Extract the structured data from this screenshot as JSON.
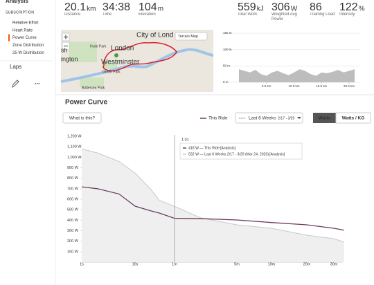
{
  "sidebar": {
    "header": "Analysis",
    "section": "SUBSCRIPTION",
    "items": [
      "Relative Effort",
      "Heart Rate",
      "Power Curve",
      "Zone Distribution",
      "25 W Distribution"
    ],
    "selected": 2,
    "laps": "Laps",
    "more": "..."
  },
  "stats": [
    {
      "value": "20.1",
      "unit": "km",
      "label": "Distance"
    },
    {
      "value": "34:38",
      "unit": "",
      "label": "Time"
    },
    {
      "value": "104",
      "unit": "m",
      "label": "Elevation"
    },
    {
      "value": "559",
      "unit": "kJ",
      "label": "Total Work"
    },
    {
      "value": "306",
      "unit": "W",
      "label": "Weighted Avg Power"
    },
    {
      "value": "86",
      "unit": "",
      "label": "Training Load"
    },
    {
      "value": "122",
      "unit": "%",
      "label": "Intensity"
    }
  ],
  "map": {
    "button": "Terrain Map",
    "labels": [
      "City of Lond",
      "London",
      "Westminster",
      "Hyde Park",
      "Green Park",
      "Battersea Park",
      "sh",
      "ington"
    ]
  },
  "section_title": "Power Curve",
  "help_button": "What is this?",
  "range": "2/17 - 3/29",
  "unit_buttons": [
    "Watts",
    "Watts / KG"
  ],
  "tooltip": {
    "time": "1:01",
    "lines": [
      {
        "text": "418 W — This Ride",
        "link": "[Analysis]"
      },
      {
        "text": "532 W — Last 6 Weeks 2/17 - 3/29 (Mar 24, 2020)",
        "link": "[Analysis]"
      }
    ]
  },
  "chart_data": [
    {
      "type": "line",
      "x": [
        1,
        2,
        5,
        10,
        20,
        30,
        60,
        120,
        300,
        600,
        1200,
        1800,
        2100
      ],
      "series": [
        {
          "name": "This Ride",
          "color": "#6b3a5c",
          "values": [
            718,
            700,
            650,
            534,
            490,
            468,
            418,
            415,
            402,
            378,
            356,
            323,
            305
          ]
        },
        {
          "name": "Last 6 Weeks",
          "color": "#c8c8c8",
          "fill": "#efefef",
          "values": [
            1080,
            1040,
            960,
            850,
            700,
            590,
            532,
            420,
            356,
            323,
            257,
            224,
            191
          ]
        }
      ],
      "xlim": [
        1,
        2100
      ],
      "xticks": [
        {
          "value": 1,
          "label": "1s"
        },
        {
          "value": 10,
          "label": "10s"
        },
        {
          "value": 60,
          "label": "1m"
        },
        {
          "value": 300,
          "label": "5m"
        },
        {
          "value": 600,
          "label": "10m"
        },
        {
          "value": 1200,
          "label": "20m"
        },
        {
          "value": 1800,
          "label": "30m"
        }
      ],
      "ylim": [
        0,
        1200
      ],
      "yticks": [
        {
          "value": 100,
          "label": "100 W"
        },
        {
          "value": 200,
          "label": "200 W"
        },
        {
          "value": 300,
          "label": "300 W"
        },
        {
          "value": 400,
          "label": "400 W"
        },
        {
          "value": 500,
          "label": "500 W"
        },
        {
          "value": 600,
          "label": "600 W"
        },
        {
          "value": 700,
          "label": "700 W"
        },
        {
          "value": 800,
          "label": "800 W"
        },
        {
          "value": 900,
          "label": "900 W"
        },
        {
          "value": 1000,
          "label": "1,000 W"
        },
        {
          "value": 1100,
          "label": "1,100 W"
        },
        {
          "value": 1200,
          "label": "1,200 W"
        }
      ],
      "marker_x": 60
    },
    {
      "type": "area",
      "x": [
        0,
        1,
        2,
        3,
        4,
        5,
        6,
        7,
        8,
        9,
        10,
        11,
        12,
        13,
        14,
        15,
        16,
        17,
        18,
        19,
        20,
        21
      ],
      "values": [
        40,
        35,
        30,
        38,
        25,
        20,
        30,
        35,
        28,
        22,
        30,
        40,
        35,
        25,
        20,
        30,
        28,
        32,
        38,
        30,
        35,
        40
      ],
      "color": "#bdbdbd",
      "xlim": [
        0,
        21
      ],
      "xticks": [
        {
          "value": 5,
          "label": "5.0 km"
        },
        {
          "value": 10,
          "label": "10.0 km"
        },
        {
          "value": 15,
          "label": "15.0 km"
        },
        {
          "value": 20,
          "label": "20.0 km"
        }
      ],
      "ylim": [
        0,
        150
      ],
      "yticks": [
        {
          "value": 0,
          "label": "0 m"
        },
        {
          "value": 50,
          "label": "50 m"
        },
        {
          "value": 100,
          "label": "100 m"
        },
        {
          "value": 150,
          "label": "150 m"
        }
      ]
    }
  ]
}
